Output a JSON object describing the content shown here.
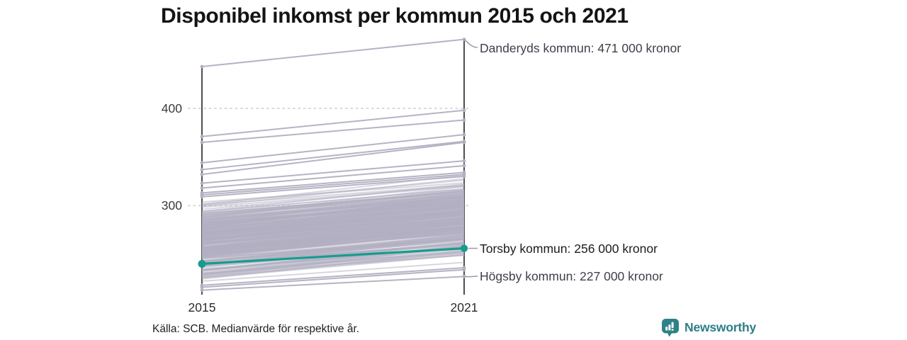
{
  "title": "Disponibel inkomst per kommun 2015 och 2021",
  "chart_data": {
    "type": "line",
    "variant": "slope-chart",
    "x_labels": [
      "2015",
      "2021"
    ],
    "y_ticks": [
      400,
      300
    ],
    "y_unit": "tusen kronor",
    "ylim": [
      205,
      480
    ],
    "grid": "dotted horizontal lines at y ticks",
    "legend_position": "none (direct labels right of 2021 axis)",
    "highlight_series": {
      "name": "Torsby kommun",
      "values": [
        240,
        256
      ],
      "label": "Torsby kommun: 256 000 kronor"
    },
    "annotated_series": [
      {
        "name": "Danderyds kommun",
        "values": [
          443,
          471
        ],
        "label": "Danderyds kommun: 471 000 kronor"
      },
      {
        "name": "Högsby kommun",
        "values": [
          213,
          227
        ],
        "label": "Högsby kommun: 227 000 kronor"
      }
    ],
    "background_series_distinct": [
      [
        371,
        398
      ],
      [
        365,
        388
      ],
      [
        344,
        373
      ],
      [
        337,
        366
      ],
      [
        332,
        365
      ],
      [
        323,
        346
      ],
      [
        318,
        341
      ],
      [
        313,
        334
      ],
      [
        311,
        332
      ],
      [
        309,
        330
      ],
      [
        216,
        234
      ],
      [
        218,
        236
      ]
    ],
    "background_mass": {
      "count": 276,
      "seed": 11,
      "start_min": 220,
      "start_span": 88,
      "slope_min": 19,
      "slope_span": 12
    },
    "colors": {
      "accent": "#169c8d",
      "background_line": "#b2afc1",
      "grid": "#d8d7df",
      "axis": "#222222",
      "tick_text": "#3b3b3b",
      "connector": "#9a98a6"
    }
  },
  "footer": {
    "source": "Källa: SCB. Medianvärde för respektive år."
  },
  "brand": {
    "name": "Newsworthy",
    "icon": "newsworthy-bar-chart-bubble-icon",
    "color": "#2e7e86"
  }
}
